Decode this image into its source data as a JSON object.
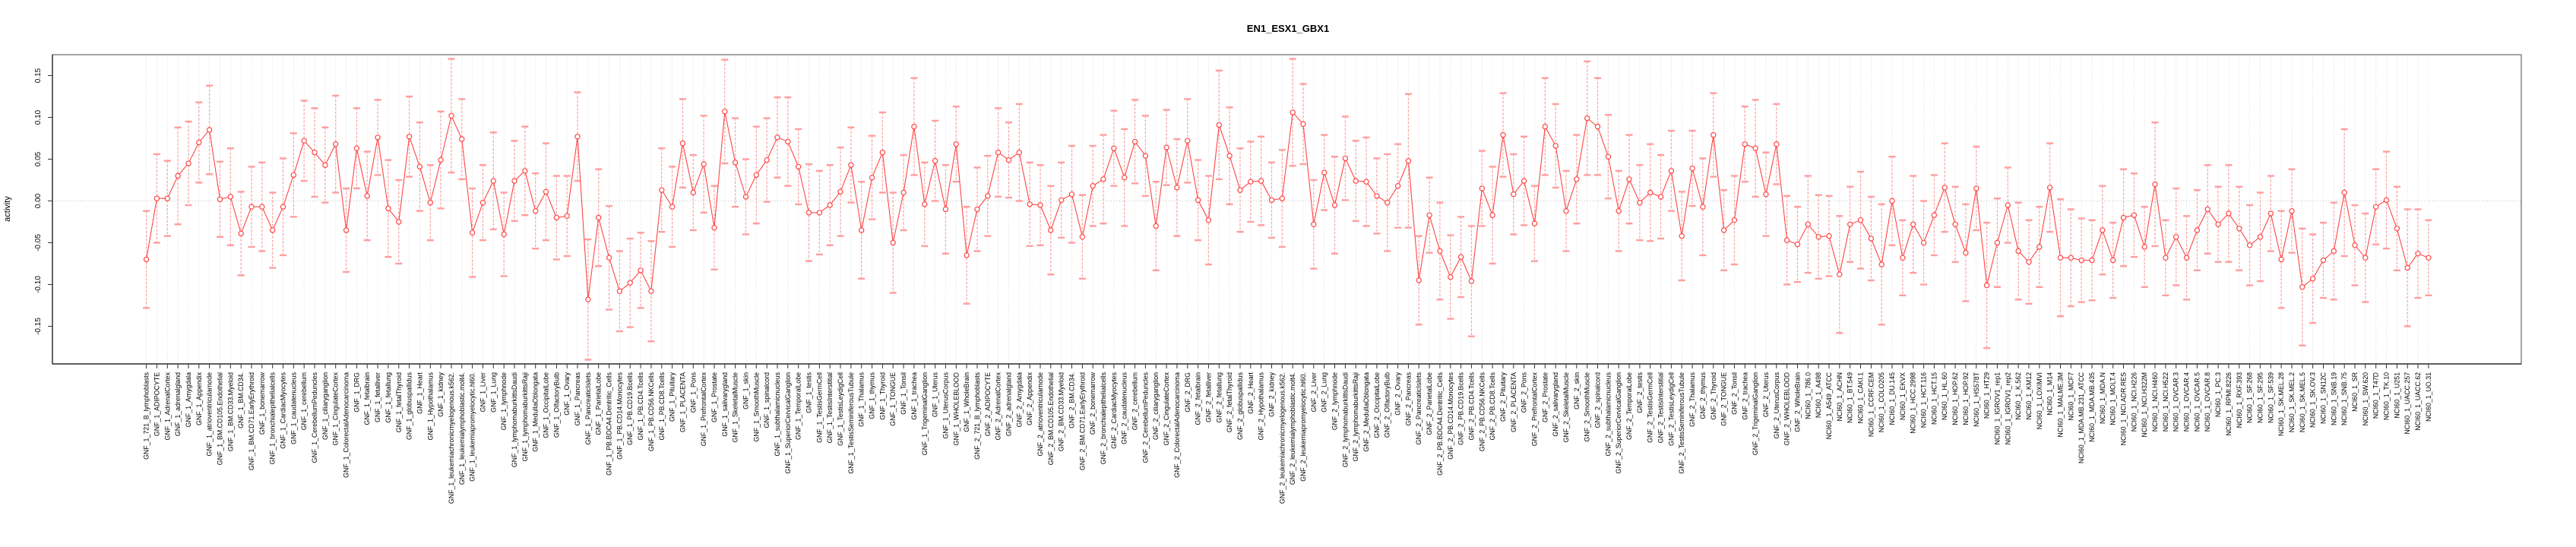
{
  "chart_data": {
    "type": "line",
    "title": "EN1_ESX1_GBX1",
    "ylabel": "activity",
    "y_ticks": [
      0.15,
      0.1,
      0.05,
      0.0,
      -0.05,
      -0.1,
      -0.15
    ],
    "ylim": [
      -0.195,
      0.175
    ],
    "grid": "vertical-dotted-per-category, dotted-zero-line",
    "legend_position": "none",
    "point_color": "#ff4545",
    "errorbar_color": "#ff9e9e",
    "categories": [
      "GNF_1_721_B_lymphoblasts",
      "GNF_1_ADIPOCYTE",
      "GNF_1_AdrenalCortex",
      "GNF_1_adrenalgland",
      "GNF_1_Amygdala",
      "GNF_1_Appendix",
      "GNF_1_atrioventricularnode",
      "GNF_1_BM.CD105.Endothelial",
      "GNF_1_BM.CD33.Myeloid",
      "GNF_1_BM.CD34.",
      "GNF_1_BM.CD71.EarlyErythroid",
      "GNF_1_bonemarrow",
      "GNF_1_bronchialepithelialcells",
      "GNF_1_CardiacMyocytes",
      "GNF_1_caudatenucleus",
      "GNF_1_cerebellum",
      "GNF_1_CerebellumPeduncles",
      "GNF_1_ciliaryganglion",
      "GNF_1_CingulateCortex",
      "GNF_1_ColorectalAdenocarcinoma",
      "GNF_1_DRG",
      "GNF_1_fetalbrain",
      "GNF_1_fetalliver",
      "GNF_1_fetallung",
      "GNF_1_fetalThyroid",
      "GNF_1_globuspallidus",
      "GNF_1_Heart",
      "GNF_1_Hypothalamus",
      "GNF_1_kidney",
      "GNF_1_leukemiachronicmyelogenous.k562.",
      "GNF_1_leukemialymphoblastic.molt4.",
      "GNF_1_leukemiapromyelocytic.hl60.",
      "GNF_1_Liver",
      "GNF_1_Lung",
      "GNF_1_lymphnode",
      "GNF_1_lymphomaburkittsDaudi",
      "GNF_1_lymphomaburkittsRaji",
      "GNF_1_MedullaOblongata",
      "GNF_1_OccipitalLobe",
      "GNF_1_OlfactoryBulb",
      "GNF_1_Ovary",
      "GNF_1_Pancreas",
      "GNF_1_PancreaticIslets",
      "GNF_1_ParietalLobe",
      "GNF_1_PB.BDCA4.Dentritic_Cells",
      "GNF_1_PB.CD14.Monocytes",
      "GNF_1_PB.CD19.Bcells",
      "GNF_1_PB.CD4.Tcells",
      "GNF_1_PB.CD56.NKCells",
      "GNF_1_PB.CD8.Tcells",
      "GNF_1_Pituitary",
      "GNF_1_PLACENTA",
      "GNF_1_Pons",
      "GNF_1_PrefrontalCortex",
      "GNF_1_Prostate",
      "GNF_1_salivarygland",
      "GNF_1_SkeletalMuscle",
      "GNF_1_skin",
      "GNF_1_SmoothMuscle",
      "GNF_1_spinalcord",
      "GNF_1_subthalamicnucleus",
      "GNF_1_SuperiorCervicalGanglion",
      "GNF_1_TemporalLobe",
      "GNF_1_testis",
      "GNF_1_TestisGermCell",
      "GNF_1_TestisInterstitial",
      "GNF_1_TestisLeydigCell",
      "GNF_1_TestisSeminiferousTubule",
      "GNF_1_Thalamus",
      "GNF_1_thymus",
      "GNF_1_Thyroid",
      "GNF_1_TONGUE",
      "GNF_1_Tonsil",
      "GNF_1_trachea",
      "GNF_1_TrigeminalGanglion",
      "GNF_1_Uterus",
      "GNF_1_UterusCorpus",
      "GNF_1_WHOLEBLOOD",
      "GNF_1_WholeBrain",
      "GNF_2_721_B_lymphoblasts",
      "GNF_2_ADIPOCYTE",
      "GNF_2_AdrenalCortex",
      "GNF_2_adrenalgland",
      "GNF_2_Amygdala",
      "GNF_2_Appendix",
      "GNF_2_atrioventricularnode",
      "GNF_2_BM.CD105.Endothelial",
      "GNF_2_BM.CD33.Myeloid",
      "GNF_2_BM.CD34.",
      "GNF_2_BM.CD71.EarlyErythroid",
      "GNF_2_bonemarrow",
      "GNF_2_bronchialepithelialcells",
      "GNF_2_CardiacMyocytes",
      "GNF_2_caudatenucleus",
      "GNF_2_cerebellum",
      "GNF_2_CerebellumPeduncles",
      "GNF_2_ciliaryganglion",
      "GNF_2_CingulateCortex",
      "GNF_2_ColorectalAdenocarcinoma",
      "GNF_2_DRG",
      "GNF_2_fetalbrain",
      "GNF_2_fetalliver",
      "GNF_2_fetallung",
      "GNF_2_fetalThyroid",
      "GNF_2_globuspallidus",
      "GNF_2_Heart",
      "GNF_2_Hypothalamus",
      "GNF_2_kidney",
      "GNF_2_leukemiachronicmyelogenous.k562.",
      "GNF_2_leukemialymphoblastic.molt4.",
      "GNF_2_leukemiapromyelocytic.hl60.",
      "GNF_2_Liver",
      "GNF_2_Lung",
      "GNF_2_lymphnode",
      "GNF_2_lymphomaburkittsDaudi",
      "GNF_2_lymphomaburkittsRaji",
      "GNF_2_MedullaOblongata",
      "GNF_2_OccipitalLobe",
      "GNF_2_OlfactoryBulb",
      "GNF_2_Ovary",
      "GNF_2_Pancreas",
      "GNF_2_PancreaticIslets",
      "GNF_2_ParietalLobe",
      "GNF_2_PB.BDCA4.Dentritic_Cells",
      "GNF_2_PB.CD14.Monocytes",
      "GNF_2_PB.CD19.Bcells",
      "GNF_2_PB.CD4.Tcells",
      "GNF_2_PB.CD56.NKCells",
      "GNF_2_PB.CD8.Tcells",
      "GNF_2_Pituitary",
      "GNF_2_PLACENTA",
      "GNF_2_Pons",
      "GNF_2_PrefrontalCortex",
      "GNF_2_Prostate",
      "GNF_2_salivarygland",
      "GNF_2_SkeletalMuscle",
      "GNF_2_skin",
      "GNF_2_SmoothMuscle",
      "GNF_2_spinalcord",
      "GNF_2_subthalamicnucleus",
      "GNF_2_SuperiorCervicalGanglion",
      "GNF_2_TemporalLobe",
      "GNF_2_testis",
      "GNF_2_TestisGermCell",
      "GNF_2_TestisInterstitial",
      "GNF_2_TestisLeydigCell",
      "GNF_2_TestisSeminiferousTubule",
      "GNF_2_Thalamus",
      "GNF_2_thymus",
      "GNF_2_Thyroid",
      "GNF_2_TONGUE",
      "GNF_2_Tonsil",
      "GNF_2_trachea",
      "GNF_2_TrigeminalGanglion",
      "GNF_2_Uterus",
      "GNF_2_UterusCorpus",
      "GNF_2_WHOLEBLOOD",
      "GNF_2_WholeBrain",
      "NCI60_1_786.0",
      "NCI60_1_A498",
      "NCI60_1_A549_ATCC",
      "NCI60_1_ACHN",
      "NCI60_1_BT.549",
      "NCI60_1_CAKI.1",
      "NCI60_1_CCRF.CEM",
      "NCI60_1_COLO205",
      "NCI60_1_DU.145",
      "NCI60_1_EKVX",
      "NCI60_1_HCC.2998",
      "NCI60_1_HCT.116",
      "NCI60_1_HCT.15",
      "NCI60_1_HL.60",
      "NCI60_1_HOP.62",
      "NCI60_1_HOP.92",
      "NCI60_1_HS578T",
      "NCI60_1_HT29",
      "NCI60_1_IGROV1_rep1",
      "NCI60_1_IGROV1_rep2",
      "NCI60_1_K.562",
      "NCI60_1_KM12",
      "NCI60_1_LOXIMVI",
      "NCI60_1_M14",
      "NCI60_1_MALME.3M",
      "NCI60_1_MCF7",
      "NCI60_1_MDA.MB.231_ATCC",
      "NCI60_1_MDA.MB.435",
      "NCI60_1_MDA.N",
      "NCI60_1_MOLT.4",
      "NCI60_1_NCI.ADR.RES",
      "NCI60_1_NCI.H226",
      "NCI60_1_NCI.H322M",
      "NCI60_1_NCI.H460",
      "NCI60_1_NCI.H522",
      "NCI60_1_OVCAR.3",
      "NCI60_1_OVCAR.4",
      "NCI60_1_OVCAR.5",
      "NCI60_1_OVCAR.8",
      "NCI60_1_PC.3",
      "NCI60_1_RPMI.8226",
      "NCI60_1_RXF.393",
      "NCI60_1_SF.268",
      "NCI60_1_SF.295",
      "NCI60_1_SF.539",
      "NCI60_1_SK.MEL.28",
      "NCI60_1_SK.MEL.2",
      "NCI60_1_SK.MEL.5",
      "NCI60_1_SK.OV.3",
      "NCI60_1_SN12C",
      "NCI60_1_SNB.19",
      "NCI60_1_SNB.75",
      "NCI60_1_SR",
      "NCI60_1_SW.620",
      "NCI60_1_T47D",
      "NCI60_1_TK.10",
      "NCI60_1_U251",
      "NCI60_1_UACC.257",
      "NCI60_1_UACC.62",
      "NCI60_1_UO.31"
    ],
    "values": [
      -0.07,
      0.003,
      0.003,
      0.03,
      0.045,
      0.07,
      0.085,
      0.002,
      0.005,
      -0.039,
      -0.007,
      -0.007,
      -0.035,
      -0.007,
      0.031,
      0.072,
      0.058,
      0.043,
      0.068,
      -0.035,
      0.063,
      0.006,
      0.076,
      -0.009,
      -0.025,
      0.077,
      0.041,
      -0.002,
      0.049,
      0.102,
      0.074,
      -0.038,
      -0.002,
      0.024,
      -0.04,
      0.024,
      0.036,
      -0.012,
      0.011,
      -0.02,
      -0.018,
      0.077,
      -0.118,
      -0.02,
      -0.068,
      -0.108,
      -0.098,
      -0.083,
      -0.108,
      0.013,
      -0.007,
      0.069,
      0.01,
      0.044,
      -0.032,
      0.107,
      0.046,
      0.005,
      0.031,
      0.049,
      0.076,
      0.071,
      0.041,
      -0.014,
      -0.014,
      -0.005,
      0.011,
      0.043,
      -0.035,
      0.028,
      0.058,
      -0.05,
      0.01,
      0.089,
      -0.004,
      0.048,
      -0.01,
      0.068,
      -0.065,
      -0.01,
      0.006,
      0.058,
      0.049,
      0.058,
      -0.004,
      -0.005,
      -0.035,
      0.001,
      0.008,
      -0.043,
      0.018,
      0.026,
      0.063,
      0.028,
      0.071,
      0.054,
      -0.03,
      0.064,
      0.016,
      0.072,
      0.001,
      -0.023,
      0.091,
      0.054,
      0.013,
      0.023,
      0.024,
      0.001,
      0.003,
      0.106,
      0.092,
      -0.028,
      0.034,
      -0.005,
      0.051,
      0.024,
      0.023,
      0.006,
      -0.002,
      0.018,
      0.048,
      -0.095,
      -0.017,
      -0.06,
      -0.091,
      -0.067,
      -0.096,
      0.015,
      -0.017,
      0.079,
      0.008,
      0.024,
      -0.027,
      0.089,
      0.066,
      -0.012,
      0.026,
      0.099,
      0.089,
      0.053,
      -0.012,
      0.026,
      -0.002,
      0.01,
      0.005,
      0.036,
      -0.042,
      0.039,
      -0.007,
      0.079,
      -0.035,
      -0.023,
      0.068,
      0.063,
      0.008,
      0.068,
      -0.047,
      -0.052,
      -0.028,
      -0.043,
      -0.042,
      -0.088,
      -0.028,
      -0.023,
      -0.045,
      -0.076,
      0.0,
      -0.068,
      -0.028,
      -0.05,
      -0.017,
      0.016,
      -0.028,
      -0.062,
      0.015,
      -0.101,
      -0.05,
      -0.005,
      -0.06,
      -0.073,
      -0.055,
      0.016,
      -0.068,
      -0.068,
      -0.071,
      -0.071,
      -0.035,
      -0.071,
      -0.02,
      -0.017,
      -0.055,
      0.02,
      -0.068,
      -0.043,
      -0.068,
      -0.035,
      -0.01,
      -0.028,
      -0.015,
      -0.033,
      -0.053,
      -0.043,
      -0.015,
      -0.07,
      -0.012,
      -0.103,
      -0.093,
      -0.071,
      -0.06,
      0.01,
      -0.053,
      -0.068,
      -0.007,
      0.001,
      -0.033,
      -0.08,
      -0.063,
      -0.068
    ],
    "errors": [
      0.058,
      0.053,
      0.045,
      0.058,
      0.05,
      0.048,
      0.053,
      0.045,
      0.058,
      0.05,
      0.048,
      0.053,
      0.045,
      0.058,
      0.05,
      0.048,
      0.053,
      0.045,
      0.058,
      0.05,
      0.048,
      0.053,
      0.045,
      0.058,
      0.05,
      0.048,
      0.053,
      0.045,
      0.058,
      0.068,
      0.048,
      0.053,
      0.045,
      0.058,
      0.05,
      0.048,
      0.053,
      0.045,
      0.058,
      0.05,
      0.048,
      0.053,
      0.072,
      0.058,
      0.062,
      0.048,
      0.053,
      0.045,
      0.06,
      0.05,
      0.048,
      0.053,
      0.045,
      0.058,
      0.05,
      0.062,
      0.053,
      0.045,
      0.058,
      0.05,
      0.048,
      0.053,
      0.045,
      0.058,
      0.05,
      0.048,
      0.053,
      0.045,
      0.058,
      0.05,
      0.048,
      0.06,
      0.045,
      0.058,
      0.05,
      0.048,
      0.053,
      0.045,
      0.058,
      0.05,
      0.048,
      0.053,
      0.045,
      0.058,
      0.05,
      0.048,
      0.053,
      0.045,
      0.058,
      0.05,
      0.048,
      0.053,
      0.045,
      0.058,
      0.05,
      0.048,
      0.053,
      0.045,
      0.058,
      0.05,
      0.048,
      0.053,
      0.065,
      0.058,
      0.05,
      0.048,
      0.053,
      0.045,
      0.058,
      0.064,
      0.048,
      0.053,
      0.045,
      0.058,
      0.05,
      0.048,
      0.053,
      0.045,
      0.058,
      0.05,
      0.08,
      0.053,
      0.045,
      0.058,
      0.05,
      0.048,
      0.066,
      0.045,
      0.058,
      0.05,
      0.048,
      0.053,
      0.045,
      0.058,
      0.05,
      0.048,
      0.053,
      0.068,
      0.058,
      0.05,
      0.048,
      0.053,
      0.045,
      0.058,
      0.05,
      0.048,
      0.053,
      0.045,
      0.058,
      0.05,
      0.048,
      0.053,
      0.045,
      0.058,
      0.05,
      0.048,
      0.053,
      0.045,
      0.058,
      0.05,
      0.048,
      0.07,
      0.045,
      0.058,
      0.05,
      0.072,
      0.053,
      0.045,
      0.058,
      0.05,
      0.048,
      0.053,
      0.045,
      0.058,
      0.05,
      0.075,
      0.053,
      0.045,
      0.058,
      0.05,
      0.048,
      0.053,
      0.07,
      0.058,
      0.05,
      0.048,
      0.053,
      0.045,
      0.058,
      0.05,
      0.048,
      0.074,
      0.045,
      0.058,
      0.05,
      0.048,
      0.053,
      0.045,
      0.058,
      0.05,
      0.048,
      0.053,
      0.045,
      0.058,
      0.05,
      0.07,
      0.053,
      0.045,
      0.058,
      0.076,
      0.048,
      0.053,
      0.045,
      0.058,
      0.05,
      0.07,
      0.053,
      0.045
    ]
  }
}
